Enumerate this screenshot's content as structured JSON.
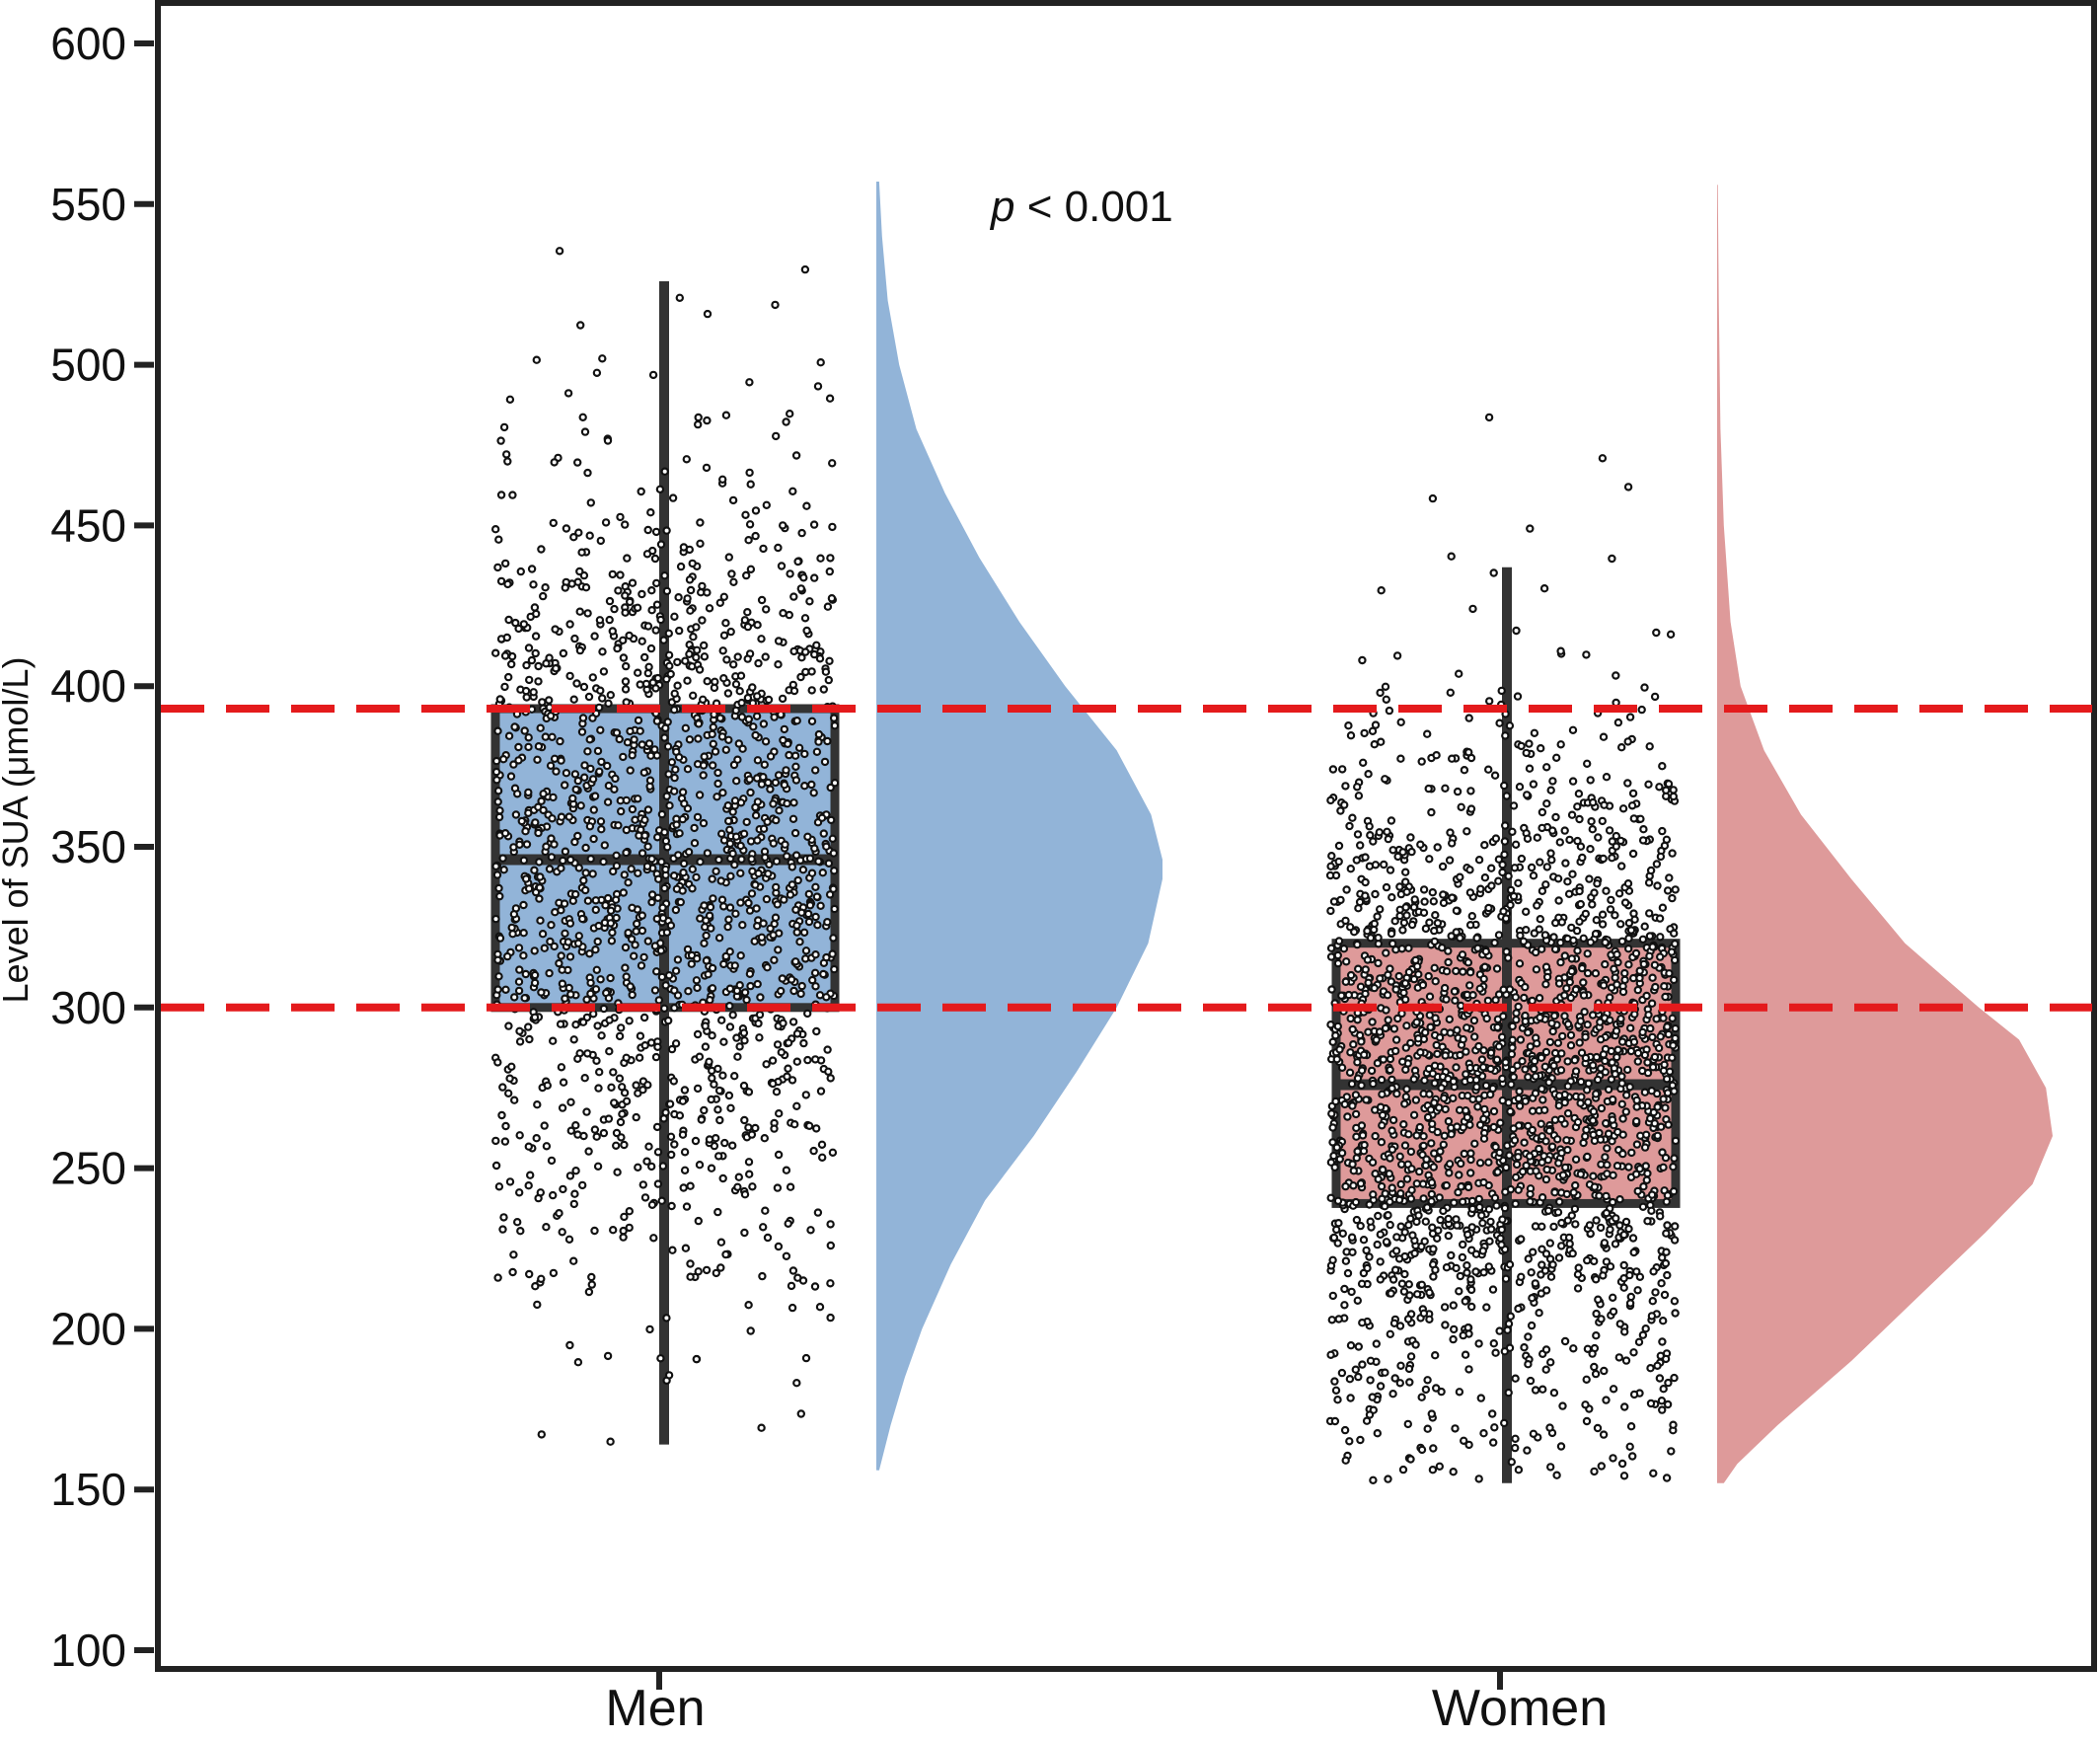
{
  "chart_data": {
    "type": "raincloud",
    "title": "",
    "xlabel": "",
    "ylabel": "Level of SUA (μmol/L)",
    "ylim": [
      100,
      600
    ],
    "yticks": [
      100,
      150,
      200,
      250,
      300,
      350,
      400,
      450,
      500,
      550,
      600
    ],
    "categories": [
      "Men",
      "Women"
    ],
    "annotation": {
      "prefix": "p",
      "text": " < 0.001"
    },
    "reference_lines": [
      300,
      393
    ],
    "reference_line_color": "#e41a1c",
    "grid": false,
    "legend": "none",
    "series": [
      {
        "group": "Men",
        "color": "#92b4d8",
        "box": {
          "whisker_low": 164,
          "q1": 300,
          "median": 346,
          "q3": 393,
          "whisker_high": 526
        },
        "points": {
          "n": 1700,
          "min": 156,
          "max": 557,
          "mean": 346,
          "sd": 63
        },
        "density": {
          "y": [
            156,
            170,
            185,
            200,
            220,
            240,
            260,
            280,
            300,
            320,
            340,
            346,
            360,
            380,
            400,
            420,
            440,
            460,
            480,
            500,
            520,
            540,
            557
          ],
          "width": [
            0.01,
            0.05,
            0.1,
            0.16,
            0.26,
            0.38,
            0.55,
            0.7,
            0.84,
            0.95,
            1.0,
            1.0,
            0.96,
            0.84,
            0.66,
            0.5,
            0.36,
            0.24,
            0.14,
            0.08,
            0.04,
            0.02,
            0.01
          ]
        }
      },
      {
        "group": "Women",
        "color": "#de9a9a",
        "box": {
          "whisker_low": 152,
          "q1": 239,
          "median": 276,
          "q3": 320,
          "whisker_high": 437
        },
        "points": {
          "n": 2300,
          "min": 152,
          "max": 556,
          "mean": 277,
          "sd": 55
        },
        "density": {
          "y": [
            152,
            158,
            170,
            190,
            210,
            230,
            245,
            260,
            275,
            290,
            300,
            320,
            340,
            360,
            380,
            400,
            420,
            450,
            480,
            520,
            556
          ],
          "width": [
            0.02,
            0.06,
            0.18,
            0.4,
            0.6,
            0.8,
            0.94,
            1.0,
            0.98,
            0.9,
            0.78,
            0.56,
            0.4,
            0.25,
            0.14,
            0.07,
            0.04,
            0.02,
            0.01,
            0.005,
            0.002
          ]
        }
      }
    ]
  }
}
